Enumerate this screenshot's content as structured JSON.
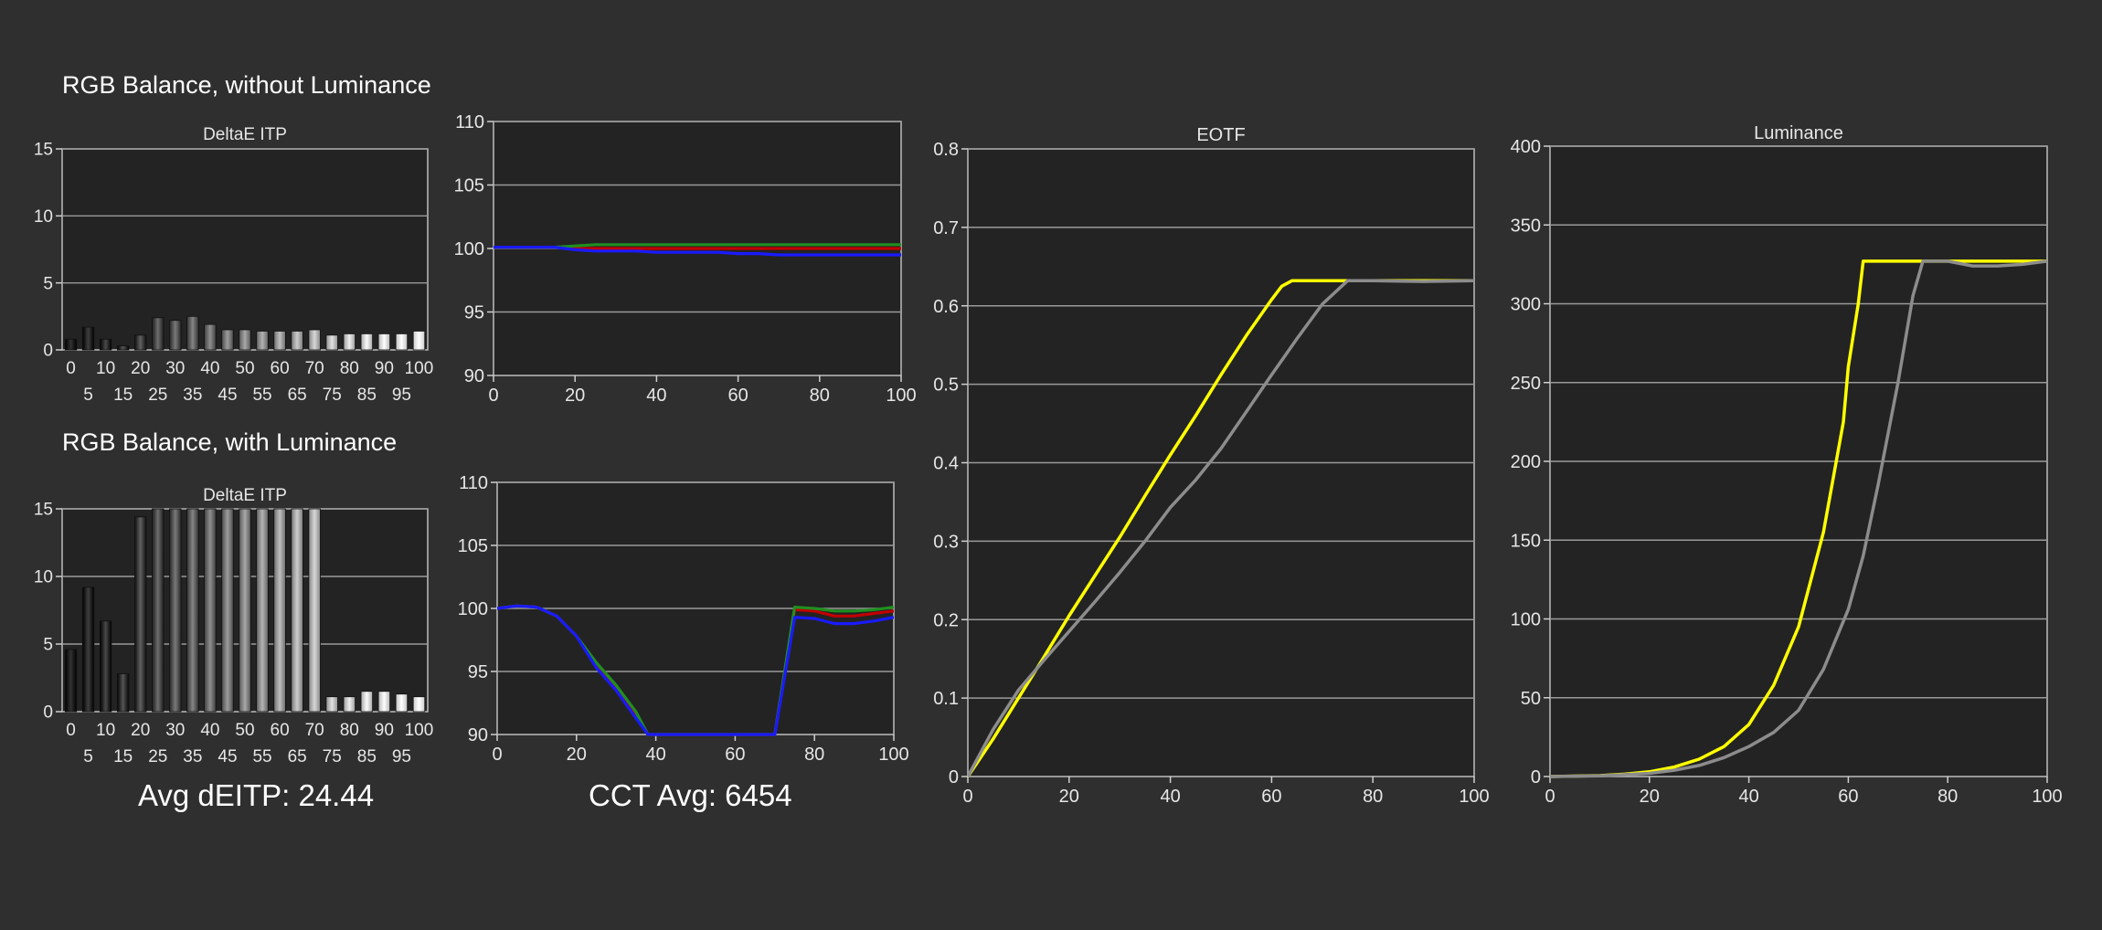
{
  "sections": {
    "top_title": "RGB Balance, without Luminance",
    "bottom_title": "RGB Balance, with Luminance"
  },
  "summary": {
    "avg_deitp": "Avg dEITP: 24.44",
    "cct_avg": "CCT Avg: 6454"
  },
  "colors": {
    "background": "#2f2f2f",
    "plot_bg": "#232323",
    "grid": "#9a9a9a",
    "red": "#c00000",
    "green": "#1f8f1f",
    "blue": "#1a1aff",
    "yellow": "#ffff00",
    "reference": "#8c8c8c"
  },
  "chart_data": [
    {
      "id": "deltae_top",
      "type": "bar",
      "title": "DeltaE ITP",
      "categories": [
        0,
        5,
        10,
        15,
        20,
        25,
        30,
        35,
        40,
        45,
        50,
        55,
        60,
        65,
        70,
        75,
        80,
        85,
        90,
        95,
        100
      ],
      "tick_labels_upper": [
        "0",
        "10",
        "20",
        "30",
        "40",
        "50",
        "60",
        "70",
        "80",
        "90",
        "100"
      ],
      "tick_labels_lower": [
        "5",
        "15",
        "25",
        "35",
        "45",
        "55",
        "65",
        "75",
        "85",
        "95"
      ],
      "values": [
        0.8,
        1.7,
        0.8,
        0.3,
        1.1,
        2.4,
        2.2,
        2.5,
        1.9,
        1.5,
        1.5,
        1.4,
        1.4,
        1.4,
        1.5,
        1.1,
        1.2,
        1.2,
        1.2,
        1.2,
        1.4
      ],
      "ylim": [
        0,
        15
      ],
      "yticks": [
        0,
        5,
        10,
        15
      ]
    },
    {
      "id": "rgb_top",
      "type": "line",
      "x": [
        0,
        5,
        10,
        15,
        20,
        25,
        30,
        35,
        40,
        45,
        50,
        55,
        60,
        65,
        70,
        75,
        80,
        85,
        90,
        95,
        100
      ],
      "series": [
        {
          "color": "red",
          "values": [
            100.1,
            100.1,
            100.1,
            100.1,
            100.0,
            100.0,
            100.0,
            100.0,
            100.0,
            100.0,
            100.0,
            100.0,
            100.0,
            100.0,
            100.0,
            100.0,
            100.0,
            100.0,
            100.0,
            100.0,
            100.0
          ]
        },
        {
          "color": "green",
          "values": [
            100.1,
            100.1,
            100.1,
            100.1,
            100.2,
            100.3,
            100.3,
            100.3,
            100.3,
            100.3,
            100.3,
            100.3,
            100.3,
            100.3,
            100.3,
            100.3,
            100.3,
            100.3,
            100.3,
            100.3,
            100.3
          ]
        },
        {
          "color": "blue",
          "values": [
            100.1,
            100.1,
            100.1,
            100.1,
            99.9,
            99.8,
            99.8,
            99.8,
            99.7,
            99.7,
            99.7,
            99.7,
            99.6,
            99.6,
            99.5,
            99.5,
            99.5,
            99.5,
            99.5,
            99.5,
            99.5
          ]
        }
      ],
      "xlim": [
        0,
        100
      ],
      "ylim": [
        90,
        110
      ],
      "xticks": [
        0,
        20,
        40,
        60,
        80,
        100
      ],
      "yticks": [
        90,
        95,
        100,
        105,
        110
      ]
    },
    {
      "id": "deltae_bottom",
      "type": "bar",
      "title": "DeltaE ITP",
      "categories": [
        0,
        5,
        10,
        15,
        20,
        25,
        30,
        35,
        40,
        45,
        50,
        55,
        60,
        65,
        70,
        75,
        80,
        85,
        90,
        95,
        100
      ],
      "tick_labels_upper": [
        "0",
        "10",
        "20",
        "30",
        "40",
        "50",
        "60",
        "70",
        "80",
        "90",
        "100"
      ],
      "tick_labels_lower": [
        "5",
        "15",
        "25",
        "35",
        "45",
        "55",
        "65",
        "75",
        "85",
        "95"
      ],
      "values": [
        4.6,
        9.2,
        6.7,
        2.8,
        14.4,
        15,
        15,
        15,
        15,
        15,
        15,
        15,
        15,
        15,
        15,
        1.1,
        1.1,
        1.5,
        1.5,
        1.3,
        1.1
      ],
      "ylim": [
        0,
        15
      ],
      "yticks": [
        0,
        5,
        10,
        15
      ]
    },
    {
      "id": "rgb_bottom",
      "type": "line",
      "x": [
        0,
        5,
        10,
        15,
        20,
        25,
        30,
        35,
        38,
        70,
        75,
        80,
        85,
        90,
        95,
        100
      ],
      "series": [
        {
          "color": "red",
          "values": [
            100,
            100.2,
            100.1,
            99.4,
            97.8,
            95.5,
            93.7,
            91.5,
            90,
            90,
            99.9,
            99.8,
            99.4,
            99.4,
            99.6,
            99.8
          ]
        },
        {
          "color": "green",
          "values": [
            100,
            100.2,
            100.1,
            99.4,
            97.8,
            95.7,
            93.9,
            91.8,
            90,
            90,
            100.1,
            100.0,
            99.8,
            99.8,
            99.9,
            100.1
          ]
        },
        {
          "color": "blue",
          "values": [
            100,
            100.2,
            100.1,
            99.4,
            97.8,
            95.3,
            93.5,
            91.3,
            90,
            90,
            99.3,
            99.2,
            98.8,
            98.8,
            99.0,
            99.3
          ]
        }
      ],
      "xlim": [
        0,
        100
      ],
      "ylim": [
        90,
        110
      ],
      "xticks": [
        0,
        20,
        40,
        60,
        80,
        100
      ],
      "yticks": [
        90,
        95,
        100,
        105,
        110
      ]
    },
    {
      "id": "eotf",
      "type": "line",
      "title": "EOTF",
      "series": [
        {
          "color": "yellow",
          "x": [
            0,
            5,
            10,
            15,
            20,
            25,
            30,
            35,
            40,
            45,
            50,
            55,
            60,
            62,
            64,
            66,
            70,
            75,
            80,
            90,
            100
          ],
          "y": [
            0,
            0.048,
            0.1,
            0.152,
            0.205,
            0.255,
            0.305,
            0.358,
            0.41,
            0.46,
            0.512,
            0.562,
            0.608,
            0.625,
            0.632,
            0.632,
            0.632,
            0.632,
            0.632,
            0.632,
            0.632
          ]
        },
        {
          "color": "reference",
          "x": [
            0,
            5,
            10,
            15,
            20,
            25,
            30,
            35,
            40,
            45,
            50,
            55,
            60,
            65,
            70,
            75,
            80,
            90,
            100
          ],
          "y": [
            0,
            0.06,
            0.11,
            0.148,
            0.185,
            0.222,
            0.26,
            0.3,
            0.343,
            0.378,
            0.418,
            0.465,
            0.512,
            0.558,
            0.602,
            0.632,
            0.632,
            0.631,
            0.632
          ]
        }
      ],
      "xlim": [
        0,
        100
      ],
      "ylim": [
        0,
        0.8
      ],
      "xticks": [
        0,
        20,
        40,
        60,
        80,
        100
      ],
      "yticks": [
        0,
        0.1,
        0.2,
        0.3,
        0.4,
        0.5,
        0.6,
        0.7,
        0.8
      ]
    },
    {
      "id": "luminance",
      "type": "line",
      "title": "Luminance",
      "series": [
        {
          "color": "yellow",
          "x": [
            0,
            10,
            15,
            20,
            25,
            30,
            35,
            40,
            45,
            50,
            55,
            57,
            59,
            60,
            62,
            63,
            65,
            70,
            75,
            80,
            90,
            100
          ],
          "y": [
            0,
            0.6,
            1.5,
            3,
            6,
            11,
            19,
            33,
            58,
            95,
            155,
            190,
            225,
            260,
            300,
            327,
            327,
            327,
            327,
            327,
            327,
            327
          ]
        },
        {
          "color": "reference",
          "x": [
            0,
            10,
            20,
            25,
            30,
            35,
            40,
            45,
            50,
            55,
            60,
            63,
            66,
            70,
            73,
            75,
            80,
            85,
            90,
            95,
            100
          ],
          "y": [
            0,
            0.4,
            2,
            4,
            7,
            12,
            19,
            28,
            42,
            68,
            106,
            140,
            185,
            250,
            305,
            327,
            327,
            324,
            324,
            325,
            327
          ]
        }
      ],
      "xlim": [
        0,
        100
      ],
      "ylim": [
        0,
        400
      ],
      "xticks": [
        0,
        20,
        40,
        60,
        80,
        100
      ],
      "yticks": [
        0,
        50,
        100,
        150,
        200,
        250,
        300,
        350,
        400
      ]
    }
  ]
}
